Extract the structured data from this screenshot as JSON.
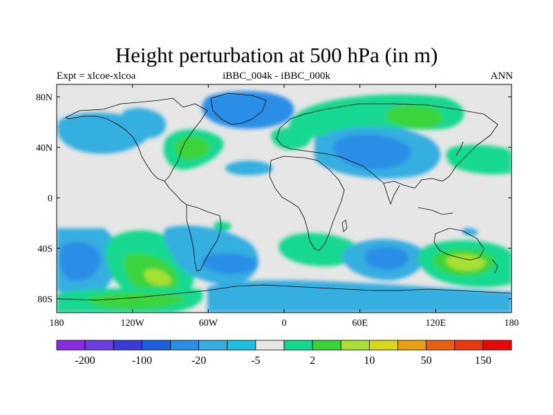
{
  "title": "Height perturbation at 500 hPa (in m)",
  "left_string": "Expt = xlcoe-xlcoa",
  "center_string": "iBBC_004k - iBBC_000k",
  "right_string": "ANN",
  "lat_labels": [
    "80N",
    "40N",
    "0",
    "40S",
    "80S"
  ],
  "lon_labels": [
    "180",
    "120W",
    "60W",
    "0",
    "60E",
    "120E",
    "180"
  ],
  "colorbar": {
    "colors": [
      "#8a2be2",
      "#6a3de0",
      "#3a3ad8",
      "#1e5fe0",
      "#2a8ee6",
      "#34aee0",
      "#1ec0e0",
      "#e6e6e6",
      "#14d890",
      "#3ad43a",
      "#a8e034",
      "#d8d81c",
      "#e8a014",
      "#e86010",
      "#e83810",
      "#e80808"
    ],
    "labels": [
      "-200",
      "-100",
      "-20",
      "-5",
      "2",
      "10",
      "50",
      "150"
    ],
    "label_boundaries": [
      1,
      3,
      5,
      7,
      9,
      11,
      13,
      15
    ]
  },
  "field_colors": {
    "neutral": "#e6e6e6",
    "weak_negative": "#34aee0",
    "moderate_negative": "#2a8ee6",
    "weak_positive": "#14d890",
    "moderate_positive": "#3ad43a",
    "strong_positive": "#a8e034",
    "peak_positive": "#d8d81c"
  }
}
